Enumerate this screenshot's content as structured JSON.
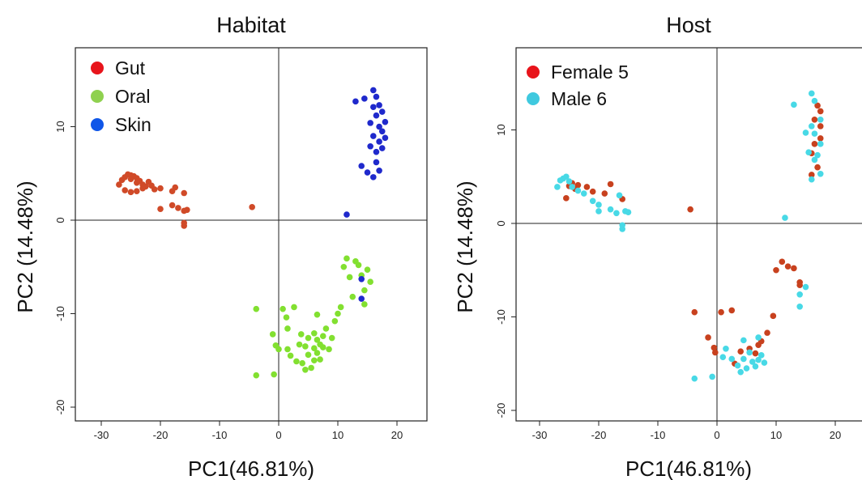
{
  "chart_data": [
    {
      "type": "scatter",
      "title": "Habitat",
      "xlabel": "PC1(46.81%)",
      "ylabel": "PC2 (14.48%)",
      "xlim": [
        -34,
        25
      ],
      "ylim": [
        -21,
        18.5
      ],
      "xticks": [
        "-30",
        "-20",
        "-10",
        "0",
        "10",
        "20"
      ],
      "yticks": [
        "-20",
        "-10",
        "0",
        "10"
      ],
      "reference_lines": {
        "x": 0,
        "y": 0
      },
      "legend_position": "top-left",
      "series": [
        {
          "name": "Gut",
          "color": "#d04a28",
          "legend_color": "#e8141b",
          "points": [
            [
              -27,
              3.8
            ],
            [
              -26.5,
              4.3
            ],
            [
              -26,
              4.6
            ],
            [
              -25.5,
              4.9
            ],
            [
              -25,
              4.8
            ],
            [
              -25,
              4.4
            ],
            [
              -24.5,
              4.7
            ],
            [
              -24,
              4.5
            ],
            [
              -24,
              4.0
            ],
            [
              -23.5,
              4.2
            ],
            [
              -23,
              3.8
            ],
            [
              -22.5,
              3.6
            ],
            [
              -22,
              4.1
            ],
            [
              -21.5,
              3.7
            ],
            [
              -20,
              3.4
            ],
            [
              -18,
              3.1
            ],
            [
              -17.5,
              3.5
            ],
            [
              -16,
              2.9
            ],
            [
              -26,
              3.2
            ],
            [
              -25,
              3.0
            ],
            [
              -24,
              3.1
            ],
            [
              -23,
              3.4
            ],
            [
              -21,
              3.3
            ],
            [
              -20,
              1.2
            ],
            [
              -18,
              1.6
            ],
            [
              -17,
              1.3
            ],
            [
              -16,
              1.0
            ],
            [
              -15.5,
              1.1
            ],
            [
              -16,
              -0.3
            ],
            [
              -16,
              -0.6
            ],
            [
              -4.5,
              1.4
            ]
          ]
        },
        {
          "name": "Oral",
          "color": "#82e030",
          "legend_color": "#8fd14f",
          "points": [
            [
              -3.8,
              -9.5
            ],
            [
              -3.8,
              -16.6
            ],
            [
              -1,
              -12.2
            ],
            [
              -0.5,
              -13.4
            ],
            [
              0,
              -13.8
            ],
            [
              -0.8,
              -16.5
            ],
            [
              0.7,
              -9.5
            ],
            [
              1.3,
              -10.4
            ],
            [
              1.5,
              -11.6
            ],
            [
              1.5,
              -13.8
            ],
            [
              2,
              -14.5
            ],
            [
              2.6,
              -9.3
            ],
            [
              3,
              -15.1
            ],
            [
              3.5,
              -13.3
            ],
            [
              3.8,
              -12.2
            ],
            [
              4,
              -15.3
            ],
            [
              4.5,
              -13.5
            ],
            [
              4.5,
              -16
            ],
            [
              5,
              -12.6
            ],
            [
              5,
              -14.4
            ],
            [
              5.5,
              -15.8
            ],
            [
              6,
              -12.1
            ],
            [
              6,
              -13.7
            ],
            [
              6,
              -15
            ],
            [
              6.5,
              -12.8
            ],
            [
              6.5,
              -14.2
            ],
            [
              6.5,
              -10.1
            ],
            [
              7,
              -13.3
            ],
            [
              7,
              -14.9
            ],
            [
              7.5,
              -12.4
            ],
            [
              7.5,
              -13.6
            ],
            [
              8,
              -11.6
            ],
            [
              8.5,
              -13.8
            ],
            [
              9,
              -12.6
            ],
            [
              9.5,
              -10.8
            ],
            [
              10,
              -10.0
            ],
            [
              10.5,
              -9.3
            ],
            [
              11,
              -5.0
            ],
            [
              11.5,
              -4.1
            ],
            [
              12,
              -6.1
            ],
            [
              12.5,
              -8.2
            ],
            [
              13,
              -4.4
            ],
            [
              13.5,
              -4.8
            ],
            [
              14,
              -5.9
            ],
            [
              14.5,
              -7.5
            ],
            [
              14.5,
              -9.0
            ],
            [
              15,
              -5.3
            ],
            [
              15.5,
              -6.6
            ]
          ]
        },
        {
          "name": "Skin",
          "color": "#1f29cc",
          "legend_color": "#0f56e8",
          "points": [
            [
              11.5,
              0.6
            ],
            [
              13,
              12.7
            ],
            [
              14,
              5.8
            ],
            [
              14.5,
              13.0
            ],
            [
              15,
              5.1
            ],
            [
              15.5,
              7.9
            ],
            [
              15.5,
              10.4
            ],
            [
              16,
              13.9
            ],
            [
              16,
              4.6
            ],
            [
              16,
              12.1
            ],
            [
              16,
              9.0
            ],
            [
              16.5,
              7.3
            ],
            [
              16.5,
              11.2
            ],
            [
              16.5,
              13.2
            ],
            [
              16.5,
              6.2
            ],
            [
              17,
              12.3
            ],
            [
              17,
              10.0
            ],
            [
              17,
              8.4
            ],
            [
              17,
              5.3
            ],
            [
              17.5,
              11.6
            ],
            [
              17.5,
              9.5
            ],
            [
              17.5,
              7.7
            ],
            [
              18,
              10.5
            ],
            [
              18,
              8.8
            ],
            [
              14,
              -6.3
            ],
            [
              14,
              -8.4
            ]
          ]
        }
      ]
    },
    {
      "type": "scatter",
      "title": "Host",
      "xlabel": "PC1(46.81%)",
      "ylabel": "PC2 (14.48%)",
      "xlim": [
        -34,
        25
      ],
      "ylim": [
        -21,
        18.5
      ],
      "xticks": [
        "-30",
        "-20",
        "-10",
        "0",
        "10",
        "20"
      ],
      "yticks": [
        "-20",
        "-10",
        "0",
        "10"
      ],
      "reference_lines": {
        "x": 0,
        "y": 0
      },
      "legend_position": "top-left",
      "series": [
        {
          "name": "Female 5",
          "color": "#c8411e",
          "legend_color": "#e8141b",
          "points": [
            [
              -25.5,
              2.7
            ],
            [
              -25,
              4.0
            ],
            [
              -24.5,
              4.3
            ],
            [
              -24,
              3.7
            ],
            [
              -23.5,
              4.1
            ],
            [
              -22,
              3.9
            ],
            [
              -21,
              3.4
            ],
            [
              -19,
              3.2
            ],
            [
              -18,
              4.2
            ],
            [
              -16,
              2.6
            ],
            [
              -4.5,
              1.5
            ],
            [
              -3.8,
              -9.5
            ],
            [
              -1.5,
              -12.2
            ],
            [
              -0.5,
              -13.3
            ],
            [
              -0.3,
              -13.8
            ],
            [
              0.7,
              -9.5
            ],
            [
              2.5,
              -9.3
            ],
            [
              3,
              -15.0
            ],
            [
              4,
              -13.7
            ],
            [
              5.5,
              -13.4
            ],
            [
              6.5,
              -13.9
            ],
            [
              7,
              -13.0
            ],
            [
              7.5,
              -12.6
            ],
            [
              8.5,
              -11.7
            ],
            [
              9.5,
              -9.9
            ],
            [
              10,
              -5.0
            ],
            [
              11,
              -4.1
            ],
            [
              12,
              -4.6
            ],
            [
              13,
              -4.8
            ],
            [
              14,
              -6.3
            ],
            [
              14,
              -6.6
            ],
            [
              16,
              5.2
            ],
            [
              16,
              7.5
            ],
            [
              16.5,
              8.5
            ],
            [
              16.5,
              11.1
            ],
            [
              17,
              12.6
            ],
            [
              17.5,
              12.0
            ],
            [
              17.5,
              10.4
            ],
            [
              17.5,
              9.1
            ],
            [
              17,
              6.0
            ]
          ]
        },
        {
          "name": "Male 6",
          "color": "#48d9e6",
          "legend_color": "#3fc9df",
          "points": [
            [
              -27,
              3.9
            ],
            [
              -26.5,
              4.6
            ],
            [
              -26,
              4.8
            ],
            [
              -25.5,
              5.0
            ],
            [
              -25,
              4.5
            ],
            [
              -24.5,
              3.9
            ],
            [
              -23.5,
              3.5
            ],
            [
              -22.5,
              3.2
            ],
            [
              -21,
              2.4
            ],
            [
              -20,
              2.0
            ],
            [
              -20,
              1.3
            ],
            [
              -18,
              1.5
            ],
            [
              -17,
              1.1
            ],
            [
              -16.5,
              3.0
            ],
            [
              -16,
              -0.2
            ],
            [
              -15.5,
              1.3
            ],
            [
              -15,
              1.2
            ],
            [
              -16,
              -0.6
            ],
            [
              -3.8,
              -16.6
            ],
            [
              -0.8,
              -16.4
            ],
            [
              1,
              -14.3
            ],
            [
              1.5,
              -13.4
            ],
            [
              2.5,
              -14.5
            ],
            [
              3.5,
              -15.2
            ],
            [
              4,
              -15.9
            ],
            [
              4.5,
              -14.5
            ],
            [
              4.5,
              -12.5
            ],
            [
              5,
              -15.5
            ],
            [
              5.5,
              -13.8
            ],
            [
              6,
              -14.8
            ],
            [
              6.5,
              -15.3
            ],
            [
              7,
              -14.6
            ],
            [
              7.5,
              -14.1
            ],
            [
              8,
              -14.9
            ],
            [
              7,
              -12.2
            ],
            [
              11.5,
              0.6
            ],
            [
              13,
              12.7
            ],
            [
              14,
              -7.6
            ],
            [
              14,
              -8.9
            ],
            [
              15,
              -6.8
            ],
            [
              15,
              9.7
            ],
            [
              15.5,
              7.6
            ],
            [
              16,
              13.9
            ],
            [
              16,
              4.7
            ],
            [
              16,
              10.4
            ],
            [
              16.5,
              13.1
            ],
            [
              16.5,
              9.6
            ],
            [
              16.5,
              6.8
            ],
            [
              17,
              7.3
            ],
            [
              17.5,
              5.3
            ],
            [
              17.5,
              8.5
            ],
            [
              17.5,
              11.1
            ]
          ]
        }
      ]
    }
  ]
}
